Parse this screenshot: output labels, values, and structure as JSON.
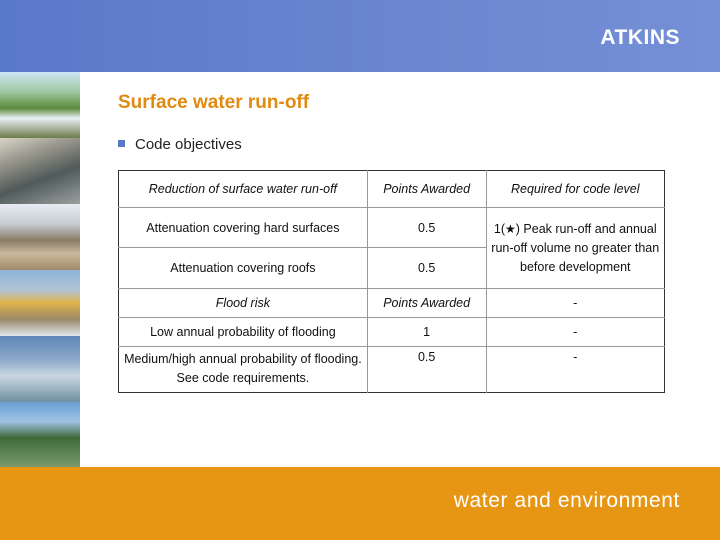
{
  "header": {
    "brand": "ATKINS",
    "accent_color": "#5a78c8"
  },
  "slide": {
    "title": "Surface water run-off",
    "bullet": "Code objectives",
    "title_color": "#e08a12"
  },
  "table": {
    "section1": {
      "headers": [
        "Reduction of surface water run-off",
        "Points Awarded",
        "Required for code level"
      ],
      "rows": [
        {
          "item": "Attenuation covering hard surfaces",
          "points": "0.5"
        },
        {
          "item": "Attenuation covering roofs",
          "points": "0.5"
        }
      ],
      "requirement": {
        "prefix": "1(",
        "star": "★",
        "text": ") Peak run-off and annual run-off volume no greater than before development"
      }
    },
    "section2": {
      "headers": [
        "Flood risk",
        "Points Awarded",
        "-"
      ],
      "rows": [
        {
          "item": "Low annual probability of flooding",
          "points": "1",
          "required": "-"
        },
        {
          "item": "Medium/high annual probability of flooding. See code requirements.",
          "points": "0.5",
          "required": "-"
        }
      ]
    }
  },
  "footer": {
    "tagline": "water and environment",
    "color": "#e69612"
  }
}
